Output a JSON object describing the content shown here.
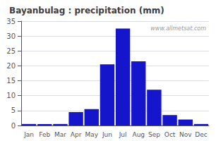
{
  "chart_data": {
    "type": "bar",
    "title": "Bayanbulag : precipitation (mm)",
    "categories": [
      "Jan",
      "Feb",
      "Mar",
      "Apr",
      "May",
      "Jun",
      "Jul",
      "Aug",
      "Sep",
      "Oct",
      "Nov",
      "Dec"
    ],
    "values": [
      0.5,
      0.5,
      0.5,
      4.5,
      5.5,
      20.5,
      32.5,
      21.5,
      12.0,
      3.5,
      2.0,
      0.5
    ],
    "color": "#1515cc",
    "ylim": [
      0,
      35
    ],
    "yticks": [
      0,
      5,
      10,
      15,
      20,
      25,
      30,
      35
    ],
    "grid": true,
    "annotations": [
      "www.allmetsat.com"
    ]
  }
}
